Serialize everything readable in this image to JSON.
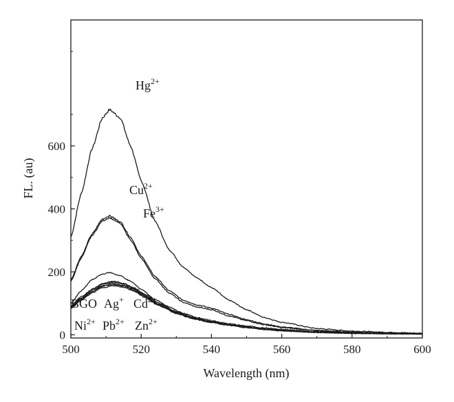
{
  "chart_data": {
    "type": "line",
    "title": "",
    "xlabel": "Wavelength (nm)",
    "ylabel": "FL. (au)",
    "xlim": [
      500,
      600
    ],
    "ylim": [
      -10,
      1000
    ],
    "x_ticks": [
      500,
      520,
      540,
      560,
      580,
      600
    ],
    "y_ticks": [
      0,
      200,
      400,
      600
    ],
    "grid": false,
    "legend": "none",
    "series": [
      {
        "name": "Hg2+",
        "peak_x": 511,
        "peak_y": 715,
        "x": [
          500,
          503,
          506,
          509,
          511,
          514,
          517,
          520,
          524,
          528,
          532,
          536,
          540,
          545,
          550,
          555,
          560,
          570,
          580,
          590,
          600
        ],
        "y": [
          310,
          450,
          590,
          690,
          715,
          690,
          600,
          490,
          360,
          270,
          215,
          180,
          150,
          110,
          80,
          55,
          40,
          20,
          12,
          8,
          5
        ]
      },
      {
        "name": "Cu2+",
        "peak_x": 511,
        "peak_y": 378,
        "x": [
          500,
          503,
          506,
          509,
          511,
          514,
          517,
          520,
          524,
          528,
          532,
          536,
          540,
          545,
          550,
          555,
          560,
          570,
          580,
          590,
          600
        ],
        "y": [
          175,
          250,
          320,
          368,
          378,
          360,
          310,
          250,
          185,
          140,
          110,
          95,
          85,
          65,
          48,
          35,
          25,
          14,
          9,
          6,
          4
        ]
      },
      {
        "name": "Fe3+",
        "peak_x": 511,
        "peak_y": 372,
        "x": [
          500,
          503,
          506,
          509,
          511,
          514,
          517,
          520,
          524,
          528,
          532,
          536,
          540,
          545,
          550,
          555,
          560,
          570,
          580,
          590,
          600
        ],
        "y": [
          170,
          245,
          315,
          362,
          372,
          354,
          302,
          243,
          178,
          133,
          103,
          88,
          80,
          60,
          45,
          32,
          23,
          13,
          8,
          5,
          3
        ]
      },
      {
        "name": "BGO",
        "peak_x": 511,
        "peak_y": 160,
        "x": [
          500,
          503,
          506,
          509,
          512,
          515,
          518,
          521,
          525,
          530,
          535,
          540,
          545,
          550,
          555,
          560,
          570,
          580,
          590,
          600
        ],
        "y": [
          88,
          115,
          138,
          154,
          160,
          155,
          142,
          122,
          95,
          70,
          52,
          40,
          31,
          24,
          18,
          13,
          8,
          5,
          4,
          3
        ]
      },
      {
        "name": "Ag+",
        "peak_x": 511,
        "peak_y": 170,
        "x": [
          500,
          503,
          506,
          509,
          512,
          515,
          518,
          521,
          525,
          530,
          535,
          540,
          545,
          550,
          555,
          560,
          570,
          580,
          590,
          600
        ],
        "y": [
          92,
          121,
          145,
          163,
          170,
          164,
          150,
          129,
          101,
          74,
          55,
          42,
          33,
          25,
          19,
          14,
          8,
          5,
          4,
          3
        ]
      },
      {
        "name": "Cd2+",
        "peak_x": 511,
        "peak_y": 198,
        "x": [
          500,
          503,
          506,
          509,
          511,
          514,
          517,
          520,
          524,
          528,
          532,
          536,
          540,
          545,
          550,
          555,
          560,
          570,
          580,
          590,
          600
        ],
        "y": [
          100,
          140,
          175,
          193,
          198,
          188,
          170,
          145,
          112,
          88,
          68,
          55,
          45,
          35,
          28,
          22,
          17,
          10,
          6,
          4,
          3
        ]
      },
      {
        "name": "Ni2+",
        "peak_x": 511,
        "peak_y": 167,
        "x": [
          500,
          503,
          506,
          509,
          512,
          515,
          518,
          521,
          525,
          530,
          535,
          540,
          545,
          550,
          555,
          560,
          570,
          580,
          590,
          600
        ],
        "y": [
          90,
          118,
          142,
          160,
          167,
          161,
          147,
          126,
          98,
          72,
          53,
          41,
          32,
          24,
          18,
          14,
          8,
          5,
          4,
          3
        ]
      },
      {
        "name": "Pb2+",
        "peak_x": 511,
        "peak_y": 163,
        "x": [
          500,
          503,
          506,
          509,
          512,
          515,
          518,
          521,
          525,
          530,
          535,
          540,
          545,
          550,
          555,
          560,
          570,
          580,
          590,
          600
        ],
        "y": [
          86,
          113,
          137,
          156,
          163,
          157,
          144,
          124,
          96,
          71,
          52,
          40,
          31,
          24,
          18,
          13,
          8,
          5,
          4,
          3
        ]
      },
      {
        "name": "Zn2+",
        "peak_x": 511,
        "peak_y": 156,
        "x": [
          500,
          503,
          506,
          509,
          512,
          515,
          518,
          521,
          525,
          530,
          535,
          540,
          545,
          550,
          555,
          560,
          570,
          580,
          590,
          600
        ],
        "y": [
          84,
          110,
          133,
          150,
          156,
          151,
          139,
          119,
          93,
          68,
          50,
          39,
          30,
          23,
          17,
          13,
          8,
          5,
          4,
          3
        ]
      }
    ],
    "annotations": [
      {
        "key": "hg",
        "base": "Hg",
        "sup": "2+"
      },
      {
        "key": "cu",
        "base": "Cu",
        "sup": "2+"
      },
      {
        "key": "fe",
        "base": "Fe",
        "sup": "3+"
      },
      {
        "key": "bgo",
        "base": "BGO",
        "sup": ""
      },
      {
        "key": "ag",
        "base": "Ag",
        "sup": "+"
      },
      {
        "key": "cd",
        "base": "Cd",
        "sup": "2+"
      },
      {
        "key": "ni",
        "base": "Ni",
        "sup": "2+"
      },
      {
        "key": "pb",
        "base": "Pb",
        "sup": "2+"
      },
      {
        "key": "zn",
        "base": "Zn",
        "sup": "2+"
      }
    ]
  }
}
